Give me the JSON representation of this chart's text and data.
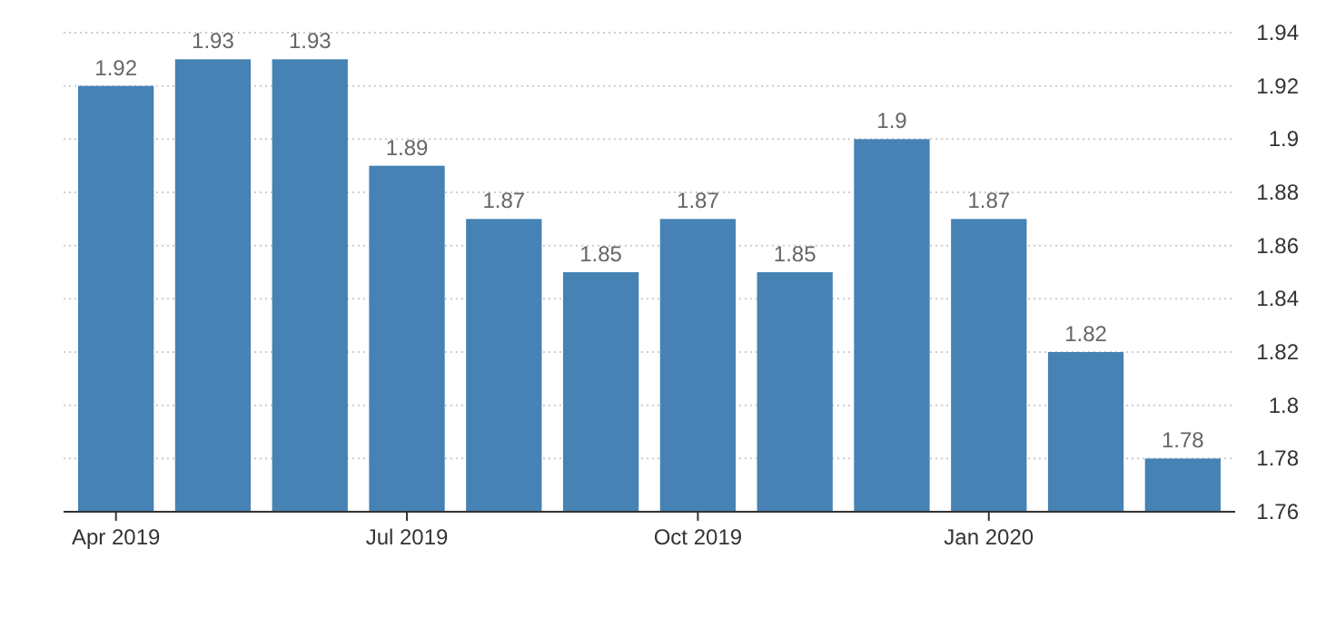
{
  "chart_data": {
    "type": "bar",
    "categories": [
      "Apr 2019",
      null,
      null,
      "Jul 2019",
      null,
      null,
      "Oct 2019",
      null,
      null,
      "Jan 2020",
      null,
      null
    ],
    "values": [
      1.92,
      1.93,
      1.93,
      1.89,
      1.87,
      1.85,
      1.87,
      1.85,
      1.9,
      1.87,
      1.82,
      1.78
    ],
    "color": "#4682b4",
    "ylim": [
      1.76,
      1.94
    ],
    "yticks": [
      1.76,
      1.78,
      1.8,
      1.82,
      1.84,
      1.86,
      1.88,
      1.9,
      1.92,
      1.94
    ],
    "grid": "y",
    "data_labels": true
  }
}
